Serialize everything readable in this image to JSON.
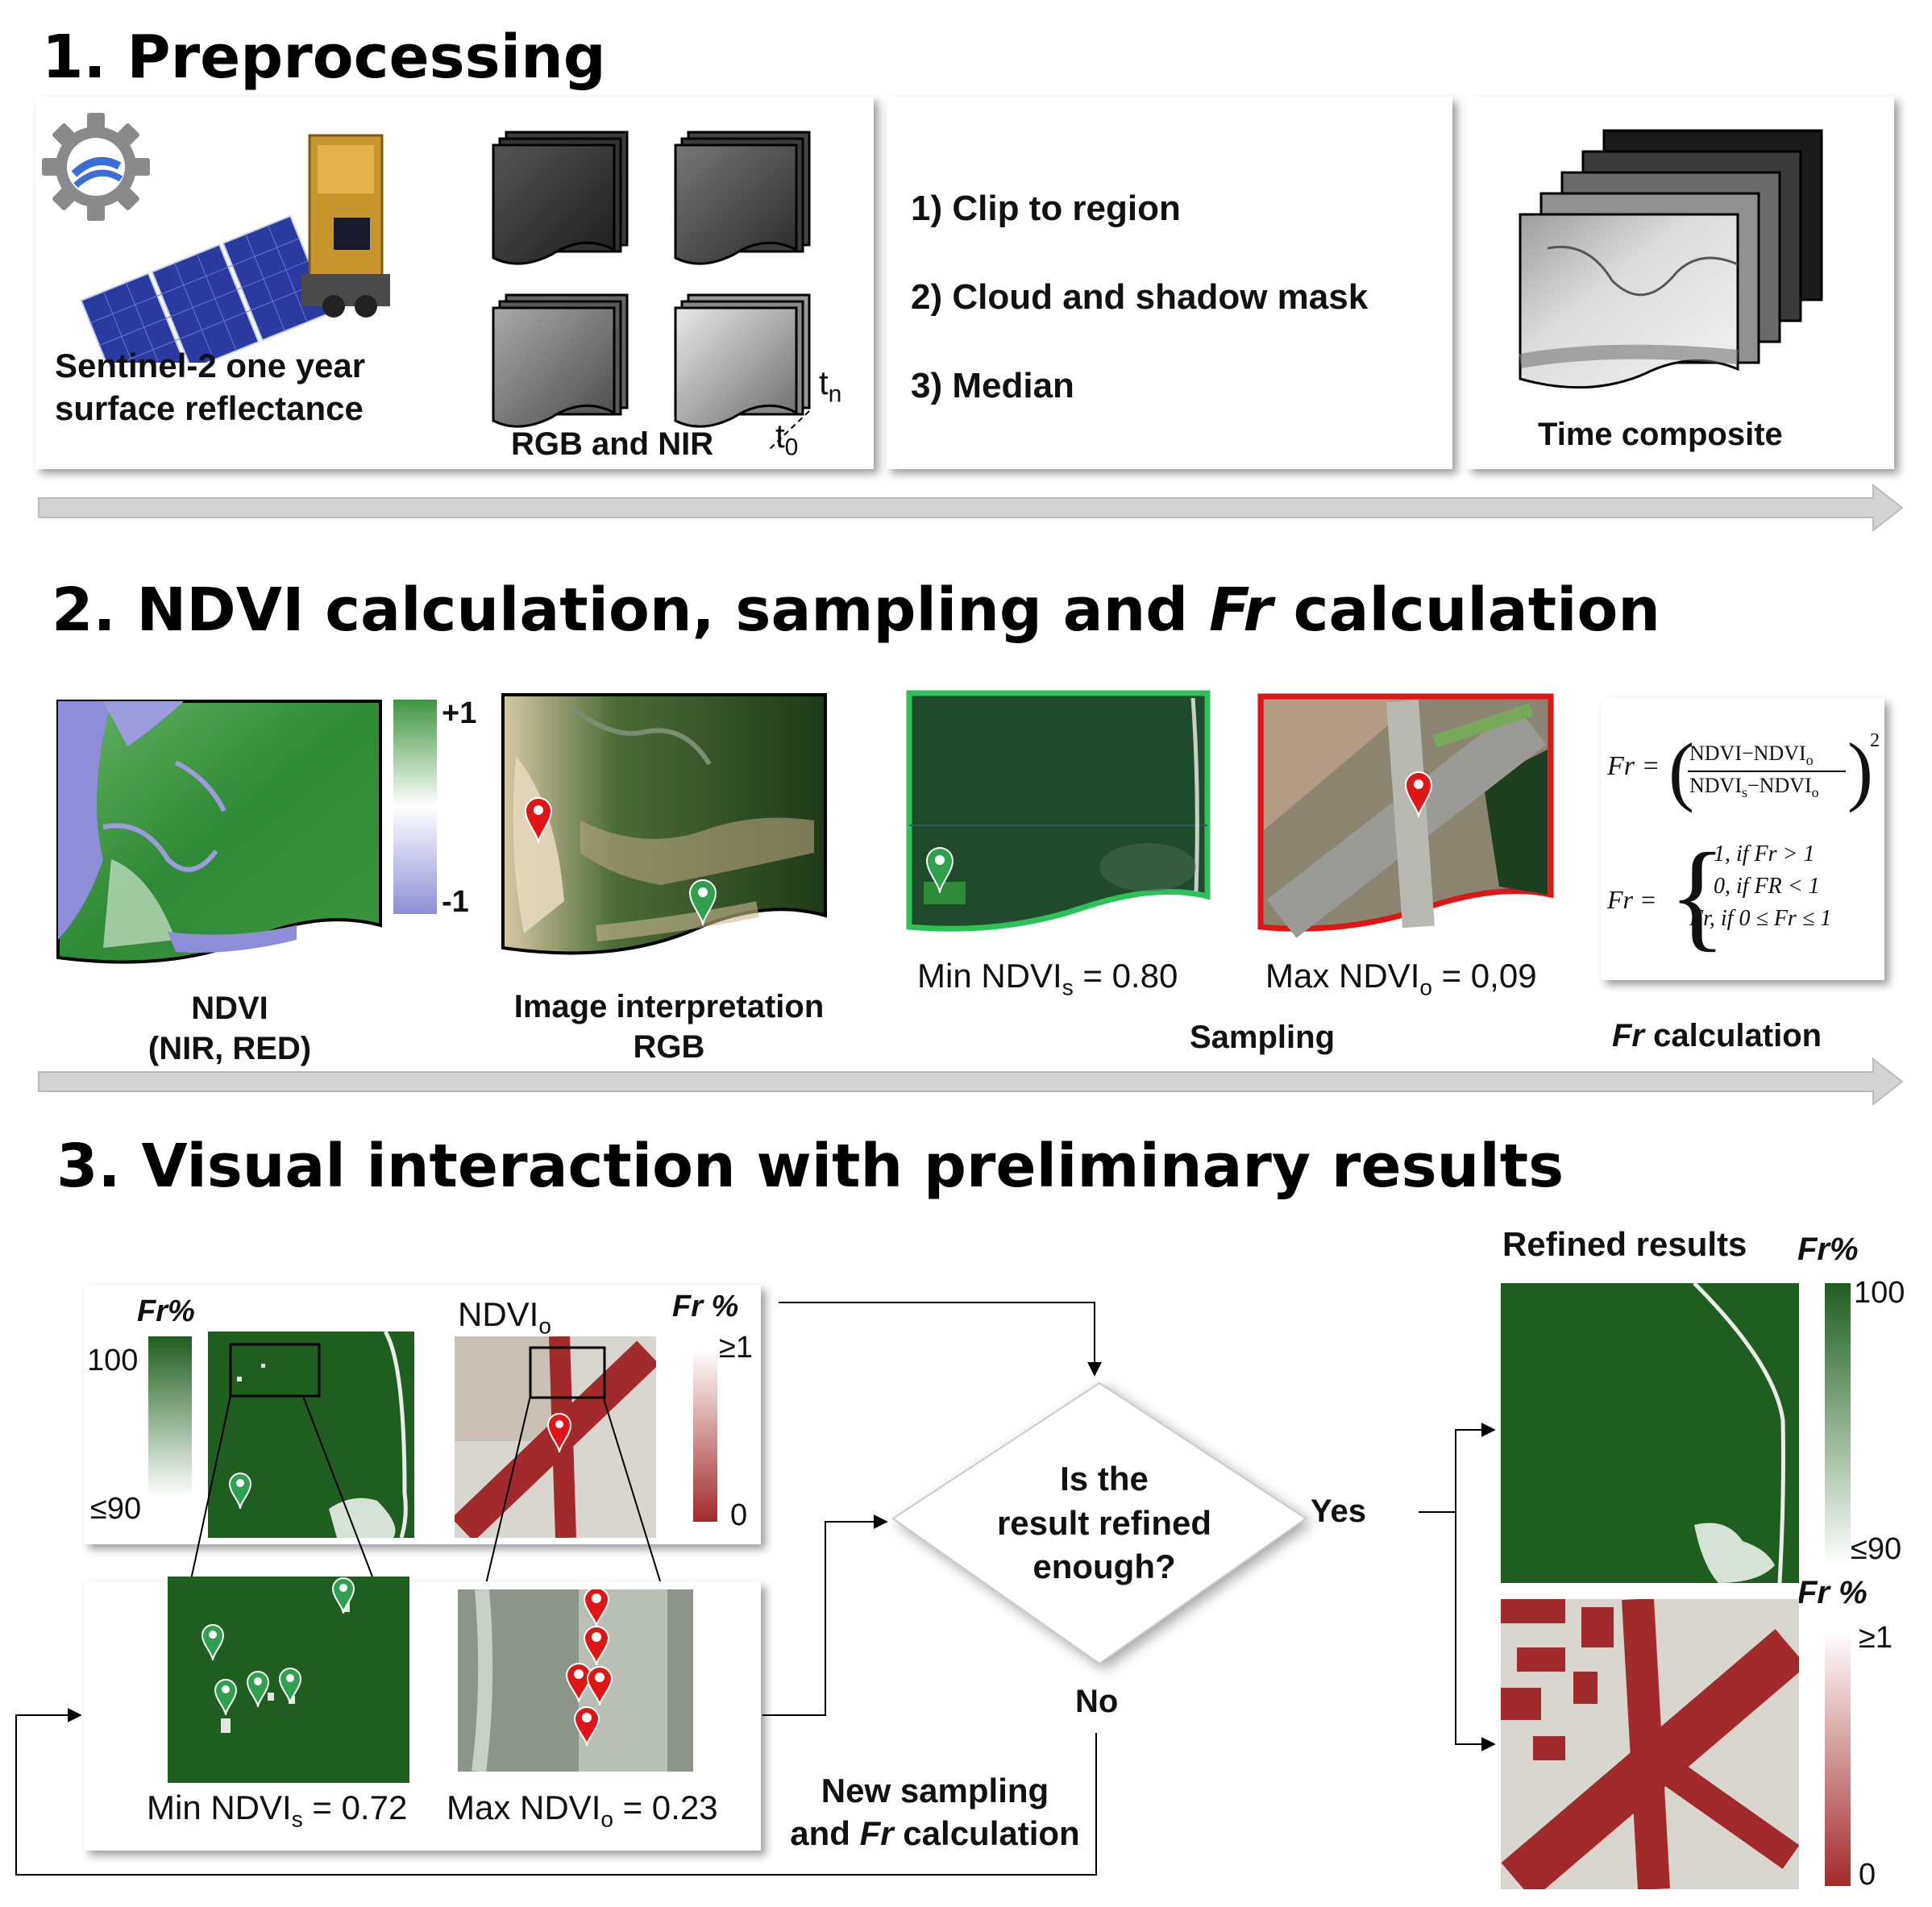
{
  "section1": {
    "title": "1. Preprocessing",
    "source_label_line1": "Sentinel-2 one year",
    "source_label_line2": "surface reflectance",
    "stack_label": "RGB and NIR",
    "t_n": "t",
    "t_n_sub": "n",
    "t_0": "t",
    "t_0_sub": "0",
    "steps": [
      "1) Clip to region",
      "2)  Cloud and shadow mask",
      "3) Median"
    ],
    "composite_label": "Time composite"
  },
  "section2": {
    "title_pre": "2. NDVI calculation, sampling and ",
    "title_italic": "Fr",
    "title_post": " calculation",
    "ndvi_label_line1": "NDVI",
    "ndvi_label_line2": "(NIR, RED)",
    "scale_max": "+1",
    "scale_min": "-1",
    "interp_label_line1": "Image interpretation",
    "interp_label_line2": "RGB",
    "min_ndvi_pre": "Min NDVI",
    "min_ndvi_sub": "s",
    "min_ndvi_val": " = 0.80",
    "max_ndvi_pre": "Max NDVI",
    "max_ndvi_sub": "o",
    "max_ndvi_val": " = 0,09",
    "sampling_label": "Sampling",
    "fr_calc_italic": "Fr",
    "fr_calc_label": " calculation",
    "formula": {
      "lhs": "Fr",
      "numerator": "NDVI−NDVI",
      "numerator_sub": "o",
      "denominator": "NDVI",
      "denominator_sub1": "s",
      "denominator_mid": "−NDVI",
      "denominator_sub2": "o",
      "exponent": "2",
      "cases": [
        "1, if  Fr > 1",
        "0, if FR < 1",
        "Fr, if 0 ≤ Fr  ≤ 1"
      ]
    }
  },
  "section3": {
    "title": "3. Visual interaction with preliminary results",
    "fr_pct": "Fr%",
    "fr_pct_spaced": "Fr %",
    "scale_100": "100",
    "scale_le90": "≤90",
    "ndvi_o": "NDVI",
    "ndvi_o_sub": "o",
    "scale_ge1": "≥1",
    "scale_0": "0",
    "min_ndvi_pre": "Min NDVI",
    "min_ndvi_sub": "s",
    "min_ndvi_val": " = 0.72",
    "max_ndvi_pre": "Max NDVI",
    "max_ndvi_sub": "o",
    "max_ndvi_val": " = 0.23",
    "decision_line1": "Is the",
    "decision_line2": "result refined",
    "decision_line3": "enough?",
    "yes": "Yes",
    "no": "No",
    "new_sampling_line1": "New sampling",
    "new_sampling_line2_pre": "and ",
    "new_sampling_line2_italic": "Fr",
    "new_sampling_line2_post": " calculation",
    "refined_label": "Refined results",
    "refined_fr": "Fr%",
    "refined_fr2": "Fr %",
    "refined_100": "100",
    "refined_le90": "≤90",
    "refined_ge1": "≥1",
    "refined_0": "0"
  },
  "colors": {
    "forest_green": "#1e5e1e",
    "ndvi_green": "#3f9540",
    "ndvi_purple": "#8e8ed8",
    "marker_green": "#2fa14e",
    "marker_red": "#e01515",
    "urban_red": "#a32a2a",
    "arrow_gray": "#d4d4d4"
  },
  "icons": [
    "gear-icon",
    "satellite-icon",
    "location-pin-icon"
  ]
}
